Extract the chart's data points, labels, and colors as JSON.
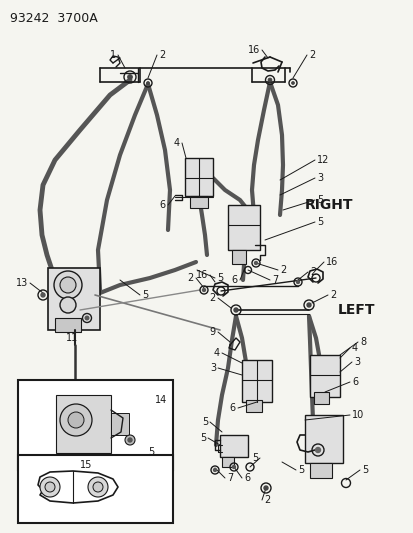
{
  "title": "93242  3700A",
  "right_label": "RIGHT",
  "left_label": "LEFT",
  "bg_color": "#f5f5f0",
  "line_color": "#1a1a1a",
  "belt_color": "#555555",
  "light_gray": "#cccccc",
  "mid_gray": "#888888",
  "fig_w": 4.14,
  "fig_h": 5.33,
  "dpi": 100
}
